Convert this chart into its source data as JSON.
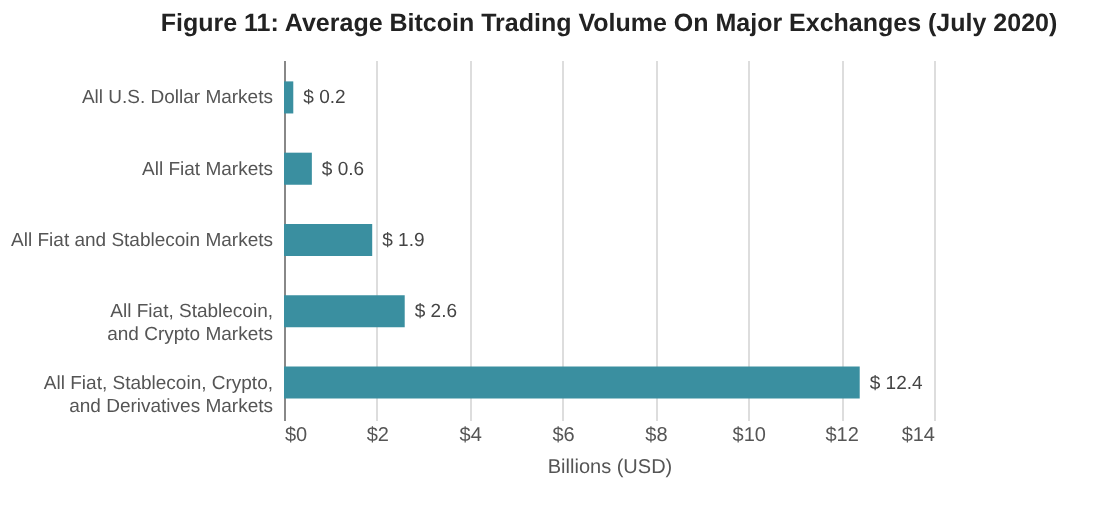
{
  "chart_data": {
    "type": "bar",
    "orientation": "horizontal",
    "title": "Figure 11: Average Bitcoin Trading Volume On Major Exchanges (July 2020)",
    "categories": [
      "All U.S. Dollar Markets",
      "All Fiat Markets",
      "All Fiat and Stablecoin Markets",
      "All Fiat, Stablecoin,\nand Crypto Markets",
      "All Fiat, Stablecoin, Crypto,\nand Derivatives Markets"
    ],
    "values": [
      0.2,
      0.6,
      1.9,
      2.6,
      12.4
    ],
    "value_labels": [
      "$ 0.2",
      "$ 0.6",
      "$ 1.9",
      "$ 2.6",
      "$ 12.4"
    ],
    "color": "#3a8fa0",
    "xlabel": "Billions (USD)",
    "xlim": [
      0,
      14
    ],
    "xticks": [
      {
        "value": 0,
        "label": "$0"
      },
      {
        "value": 2,
        "label": "$2"
      },
      {
        "value": 4,
        "label": "$4"
      },
      {
        "value": 6,
        "label": "$6"
      },
      {
        "value": 8,
        "label": "$8"
      },
      {
        "value": 10,
        "label": "$10"
      },
      {
        "value": 12,
        "label": "$12"
      },
      {
        "value": 14,
        "label": "$14"
      }
    ],
    "grid": "x"
  }
}
